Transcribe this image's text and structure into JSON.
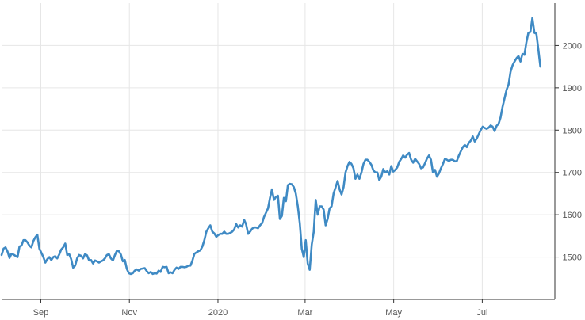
{
  "chart_data": {
    "type": "line",
    "title": "",
    "xlabel": "",
    "ylabel": "",
    "x_start": "2019-08-05",
    "x_end": "2020-08-10",
    "xlim": [
      "2019-08-05",
      "2020-08-20"
    ],
    "ylim": [
      1400,
      2100
    ],
    "grid": true,
    "line_color": "#3f8ac4",
    "x_ticks": [
      {
        "date": "2019-09-01",
        "label": "Sep"
      },
      {
        "date": "2019-11-01",
        "label": "Nov"
      },
      {
        "date": "2020-01-01",
        "label": "2020"
      },
      {
        "date": "2020-03-01",
        "label": "Mar"
      },
      {
        "date": "2020-05-01",
        "label": "May"
      },
      {
        "date": "2020-07-01",
        "label": "Jul"
      }
    ],
    "y_ticks": [
      {
        "value": 1500,
        "label": "1500"
      },
      {
        "value": 1600,
        "label": "1600"
      },
      {
        "value": 1700,
        "label": "1700"
      },
      {
        "value": 1800,
        "label": "1800"
      },
      {
        "value": 1900,
        "label": "1900"
      },
      {
        "value": 2000,
        "label": "2000"
      }
    ],
    "series": [
      {
        "values": [
          1505,
          1520,
          1523,
          1513,
          1498,
          1508,
          1506,
          1503,
          1500,
          1525,
          1527,
          1540,
          1540,
          1535,
          1527,
          1523,
          1538,
          1547,
          1553,
          1520,
          1510,
          1500,
          1487,
          1495,
          1500,
          1493,
          1500,
          1502,
          1497,
          1506,
          1518,
          1523,
          1532,
          1505,
          1507,
          1495,
          1475,
          1480,
          1497,
          1505,
          1503,
          1497,
          1507,
          1504,
          1492,
          1493,
          1485,
          1492,
          1490,
          1487,
          1490,
          1492,
          1497,
          1505,
          1507,
          1497,
          1492,
          1505,
          1515,
          1514,
          1506,
          1490,
          1493,
          1472,
          1462,
          1460,
          1462,
          1468,
          1471,
          1468,
          1472,
          1473,
          1474,
          1467,
          1462,
          1465,
          1460,
          1462,
          1461,
          1468,
          1465,
          1477,
          1476,
          1477,
          1462,
          1464,
          1462,
          1470,
          1475,
          1472,
          1477,
          1477,
          1476,
          1477,
          1480,
          1480,
          1492,
          1508,
          1511,
          1514,
          1516,
          1525,
          1540,
          1560,
          1568,
          1575,
          1560,
          1556,
          1548,
          1552,
          1555,
          1555,
          1560,
          1555,
          1555,
          1557,
          1560,
          1565,
          1578,
          1570,
          1575,
          1572,
          1588,
          1577,
          1555,
          1560,
          1567,
          1570,
          1570,
          1568,
          1575,
          1580,
          1595,
          1605,
          1615,
          1640,
          1660,
          1635,
          1642,
          1645,
          1590,
          1597,
          1640,
          1632,
          1670,
          1673,
          1672,
          1665,
          1650,
          1620,
          1580,
          1520,
          1500,
          1540,
          1485,
          1470,
          1530,
          1560,
          1635,
          1600,
          1620,
          1620,
          1612,
          1575,
          1590,
          1615,
          1620,
          1650,
          1665,
          1680,
          1660,
          1648,
          1665,
          1700,
          1715,
          1725,
          1720,
          1710,
          1685,
          1695,
          1685,
          1700,
          1720,
          1730,
          1730,
          1725,
          1718,
          1705,
          1700,
          1700,
          1682,
          1690,
          1708,
          1700,
          1703,
          1695,
          1715,
          1702,
          1706,
          1712,
          1725,
          1732,
          1740,
          1735,
          1742,
          1746,
          1730,
          1723,
          1732,
          1726,
          1720,
          1710,
          1712,
          1722,
          1733,
          1740,
          1730,
          1700,
          1706,
          1690,
          1698,
          1710,
          1720,
          1732,
          1730,
          1727,
          1730,
          1730,
          1726,
          1727,
          1740,
          1750,
          1760,
          1765,
          1760,
          1770,
          1775,
          1785,
          1773,
          1780,
          1790,
          1800,
          1808,
          1805,
          1803,
          1806,
          1811,
          1808,
          1798,
          1810,
          1815,
          1830,
          1855,
          1875,
          1895,
          1908,
          1938,
          1953,
          1962,
          1970,
          1975,
          1962,
          1980,
          1978,
          2008,
          2030,
          2032,
          2065,
          2030,
          2028,
          1990,
          1950
        ]
      }
    ]
  }
}
